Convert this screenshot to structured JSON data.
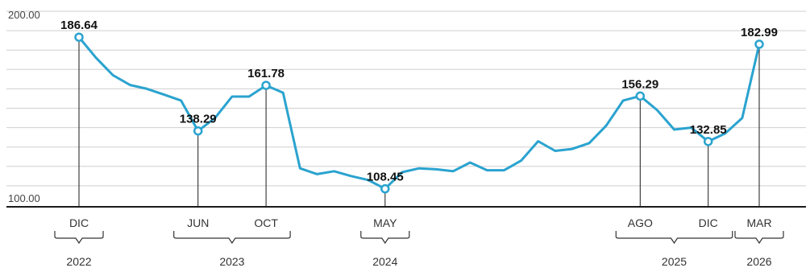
{
  "colors": {
    "line": "#2aa3cf",
    "axis": "#1a1a1a",
    "grid": "#cfcfcf"
  },
  "chart_data": {
    "type": "line",
    "title": "",
    "xlabel": "",
    "ylabel": "",
    "ylim": [
      100,
      200
    ],
    "y_ticks": [
      {
        "value": 200,
        "label": "200.00"
      },
      {
        "value": 100,
        "label": "100.00"
      }
    ],
    "grid": true,
    "series": [
      {
        "values": [
          186.64,
          176,
          167,
          162,
          160,
          157,
          154,
          138.29,
          145,
          156,
          156,
          161.78,
          158,
          119,
          116,
          117.5,
          115,
          113,
          108.45,
          117,
          119,
          118.5,
          117.5,
          122,
          118,
          118,
          123,
          133,
          128,
          129,
          132,
          141,
          154,
          156.29,
          149,
          139,
          140,
          132.85,
          137,
          145,
          182.99
        ]
      }
    ],
    "labeled_points": [
      {
        "index": 0,
        "label": "186.64",
        "month": "DIC"
      },
      {
        "index": 7,
        "label": "138.29",
        "month": "JUN"
      },
      {
        "index": 11,
        "label": "161.78",
        "month": "OCT"
      },
      {
        "index": 18,
        "label": "108.45",
        "month": "MAY"
      },
      {
        "index": 33,
        "label": "156.29",
        "month": "AGO"
      },
      {
        "index": 37,
        "label": "132.85",
        "month": "DIC"
      },
      {
        "index": 40,
        "label": "182.99",
        "month": "MAR"
      }
    ],
    "year_groups": [
      {
        "label": "2022",
        "from": 0,
        "to": 0
      },
      {
        "label": "2023",
        "from": 7,
        "to": 11
      },
      {
        "label": "2024",
        "from": 18,
        "to": 18
      },
      {
        "label": "2025",
        "from": 33,
        "to": 37
      },
      {
        "label": "2026",
        "from": 40,
        "to": 40
      }
    ]
  }
}
